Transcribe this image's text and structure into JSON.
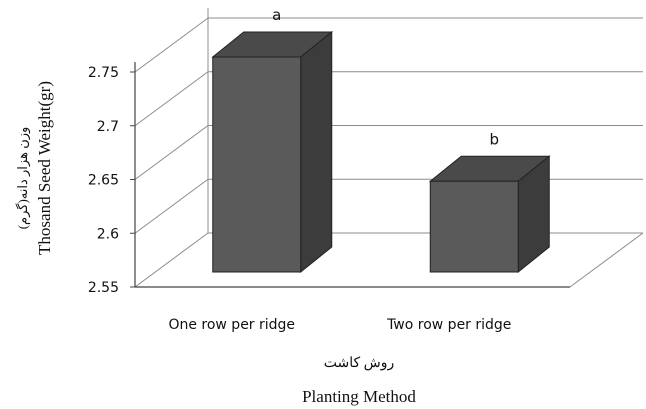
{
  "chart_data": {
    "type": "bar",
    "categories": [
      "One row per ridge",
      "Two row per ridge"
    ],
    "values": [
      2.75,
      2.64
    ],
    "data_labels": [
      "a",
      "b"
    ],
    "ylim": [
      2.55,
      2.75
    ],
    "yticks": [
      "2.55",
      "2.6",
      "2.65",
      "2.7",
      "2.75"
    ],
    "ylabel_fa": "وزن هزار دانه(گرم)",
    "ylabel": "Thosand Seed Weight(gr)",
    "xlabel_fa": "روش کاشت",
    "xlabel": "Planting Method",
    "grid": true,
    "style": "3d",
    "colors": {
      "bar_front": "#5a5a5a",
      "bar_side": "#3c3c3c",
      "bar_top": "#4a4a4a",
      "grid": "#8c8c8c"
    }
  }
}
